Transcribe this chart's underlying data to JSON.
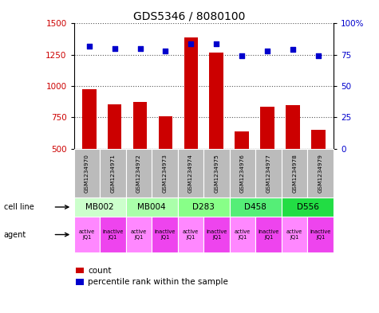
{
  "title": "GDS5346 / 8080100",
  "samples": [
    "GSM1234970",
    "GSM1234971",
    "GSM1234972",
    "GSM1234973",
    "GSM1234974",
    "GSM1234975",
    "GSM1234976",
    "GSM1234977",
    "GSM1234978",
    "GSM1234979"
  ],
  "counts": [
    975,
    855,
    875,
    760,
    1390,
    1270,
    640,
    835,
    845,
    650
  ],
  "percentile_ranks": [
    82,
    80,
    80,
    78,
    84,
    84,
    74,
    78,
    79,
    74
  ],
  "ylim_left": [
    500,
    1500
  ],
  "ylim_right": [
    0,
    100
  ],
  "yticks_left": [
    500,
    750,
    1000,
    1250,
    1500
  ],
  "yticks_right": [
    0,
    25,
    50,
    75,
    100
  ],
  "bar_color": "#cc0000",
  "dot_color": "#0000cc",
  "cell_lines": [
    {
      "label": "MB002",
      "cols": [
        0,
        1
      ],
      "color": "#ccffcc"
    },
    {
      "label": "MB004",
      "cols": [
        2,
        3
      ],
      "color": "#aaffaa"
    },
    {
      "label": "D283",
      "cols": [
        4,
        5
      ],
      "color": "#88ff88"
    },
    {
      "label": "D458",
      "cols": [
        6,
        7
      ],
      "color": "#55ee77"
    },
    {
      "label": "D556",
      "cols": [
        8,
        9
      ],
      "color": "#22dd44"
    }
  ],
  "agents": [
    "active\nJQ1",
    "inactive\nJQ1",
    "active\nJQ1",
    "inactive\nJQ1",
    "active\nJQ1",
    "inactive\nJQ1",
    "active\nJQ1",
    "inactive\nJQ1",
    "active\nJQ1",
    "inactive\nJQ1"
  ],
  "active_color": "#ff88ff",
  "inactive_color": "#ee44ee",
  "tick_label_color_left": "#cc0000",
  "tick_label_color_right": "#0000cc",
  "grid_color": "#555555",
  "bg_color": "#ffffff",
  "sample_box_color": "#bbbbbb"
}
